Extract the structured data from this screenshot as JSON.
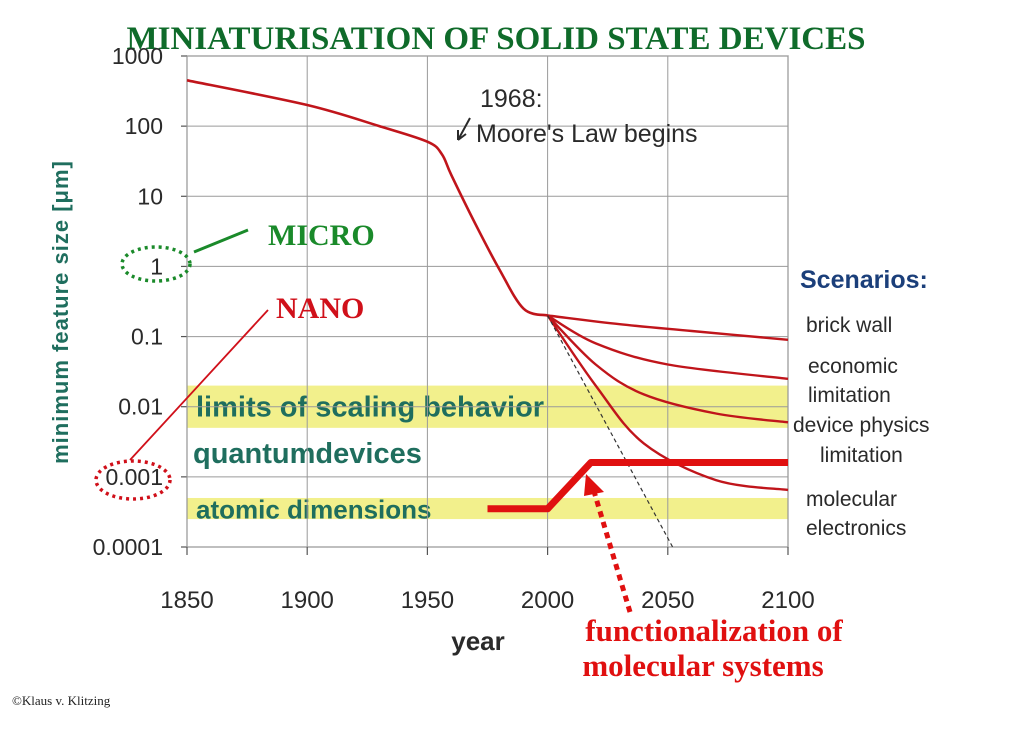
{
  "page": {
    "title": "MINIATURISATION OF SOLID STATE DEVICES",
    "copyright": "©Klaus v. Klitzing"
  },
  "colors": {
    "title": "#0f6b2a",
    "curve": "#c0151b",
    "band": "#f2f08c",
    "band_text": "#1f6e5e",
    "axis_text": "#2a2a2a",
    "ylabel": "#1f6e5e",
    "scenario_text": "#1b3f7a",
    "micro": "#1a8a2a",
    "nano": "#d0101a",
    "red_callout": "#e01010"
  },
  "labels": {
    "micro": "MICRO",
    "nano": "NANO",
    "moores_year": "1968:",
    "moores_text": "Moore's Law begins",
    "functionalization_line1": "functionalization of",
    "functionalization_line2": "molecular systems"
  },
  "chart_data": {
    "type": "line",
    "xlabel": "year",
    "ylabel": "minimum feature size [μm]",
    "yscale": "log",
    "xlim": [
      1850,
      2100
    ],
    "ylim": [
      0.0001,
      1000
    ],
    "x_ticks": [
      "1850",
      "1900",
      "1950",
      "2000",
      "2050",
      "2100"
    ],
    "y_ticks": [
      "1000",
      "100",
      "10",
      "1",
      "0.1",
      "0.01",
      "0.001",
      "0.0001"
    ],
    "grid": true,
    "legend_title": "Scenarios:",
    "trend": {
      "x": [
        1850,
        1900,
        1930,
        1950,
        1956,
        1960,
        1970,
        1980,
        1990,
        2000
      ],
      "y": [
        450,
        200,
        100,
        60,
        40,
        20,
        4,
        0.9,
        0.25,
        0.2
      ]
    },
    "scenarios": [
      {
        "name": "brick wall",
        "x": [
          2000,
          2030,
          2060,
          2100
        ],
        "y": [
          0.2,
          0.15,
          0.12,
          0.09
        ]
      },
      {
        "name": "economic limitation",
        "x": [
          2000,
          2020,
          2050,
          2100
        ],
        "y": [
          0.2,
          0.08,
          0.04,
          0.025
        ]
      },
      {
        "name": "device physics limitation",
        "x": [
          2000,
          2020,
          2040,
          2070,
          2100
        ],
        "y": [
          0.2,
          0.04,
          0.015,
          0.008,
          0.006
        ]
      },
      {
        "name": "molecular electronics",
        "x": [
          2000,
          2020,
          2040,
          2070,
          2100
        ],
        "y": [
          0.2,
          0.02,
          0.003,
          0.0009,
          0.00065
        ]
      }
    ],
    "extrapolation": {
      "x": [
        2000,
        2018,
        2036,
        2052
      ],
      "y": [
        0.2,
        0.01,
        0.0008,
        0.0001
      ]
    },
    "functionalization": {
      "x": [
        1975,
        2000,
        2018,
        2100
      ],
      "y": [
        0.00035,
        0.00035,
        0.0016,
        0.0016
      ]
    },
    "bands": [
      {
        "label": "limits of scaling behavior",
        "y_range": [
          0.005,
          0.02
        ],
        "filled": true
      },
      {
        "label": "quantumdevices",
        "y_range": [
          0.0012,
          0.004
        ],
        "filled": false
      },
      {
        "label": "atomic dimensions",
        "y_range": [
          0.00025,
          0.0005
        ],
        "filled": true
      }
    ]
  }
}
